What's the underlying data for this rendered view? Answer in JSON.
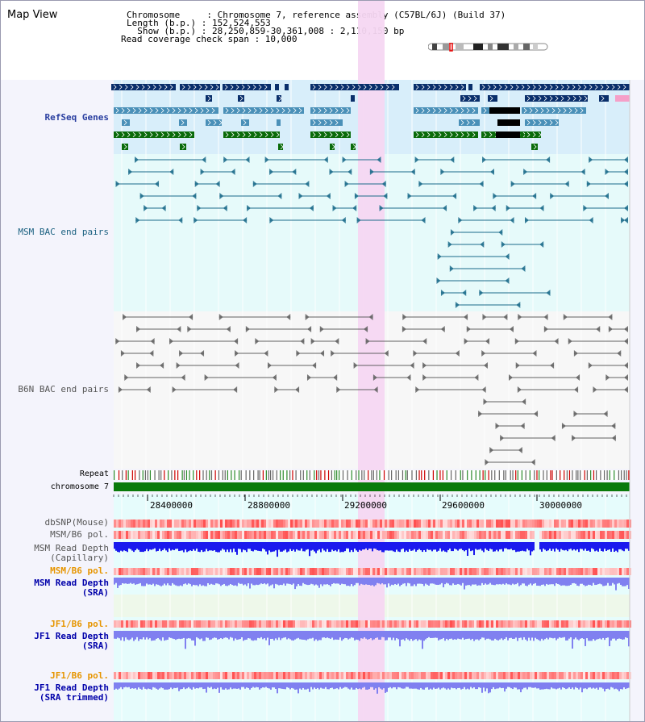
{
  "header": {
    "title": "Map View",
    "info_lines": [
      "Chromosome     : Chromosome 7, reference assembly (C57BL/6J) (Build 37)",
      "Length (b.p.) : 152,524,553",
      "  Show (b.p.) : 28,250,859-30,361,008 : 2,110,150 bp",
      "Read coverage check span : 10,000"
    ]
  },
  "tracks": {
    "refseq": "RefSeq Genes",
    "msm_bac": "MSM BAC end pairs",
    "b6n_bac": "B6N BAC end pairs",
    "repeat": "Repeat",
    "chromosome": "chromosome 7",
    "dbsnp": "dbSNP(Mouse)",
    "msm_b6_pol_1": "MSM/B6 pol.",
    "msm_depth_cap_1": "MSM Read Depth",
    "msm_depth_cap_2": "(Capillary)",
    "msm_b6_pol_2": "MSM/B6 pol.",
    "msm_depth_sra_1": "MSM Read Depth",
    "msm_depth_sra_2": "(SRA)",
    "jf1_b6_pol_1": "JF1/B6 pol.",
    "jf1_depth_sra_1": "JF1 Read Depth",
    "jf1_depth_sra_2": "(SRA)",
    "jf1_b6_pol_2": "JF1/B6 pol.",
    "jf1_depth_trim_1": "JF1 Read Depth",
    "jf1_depth_trim_2": "(SRA trimmed)"
  },
  "axis_ticks": [
    "28400000",
    "28800000",
    "29200000",
    "29600000",
    "30000000"
  ],
  "highlight_color": "#f5d7f2",
  "colors": {
    "refseq_dark": "#0a2f6b",
    "refseq_light": "#4a90b8",
    "refseq_green": "#0a6b0a",
    "msm_bac": "#1a6a8a",
    "b6n_bac": "#606060",
    "chromosome_bar": "#0a7a0a",
    "snp": "#f08080",
    "depth_capillary": "#1a1aee",
    "depth_sra": "#8080f0",
    "pol_label_color": "#e69500",
    "depth_label_color": "#0000aa"
  }
}
